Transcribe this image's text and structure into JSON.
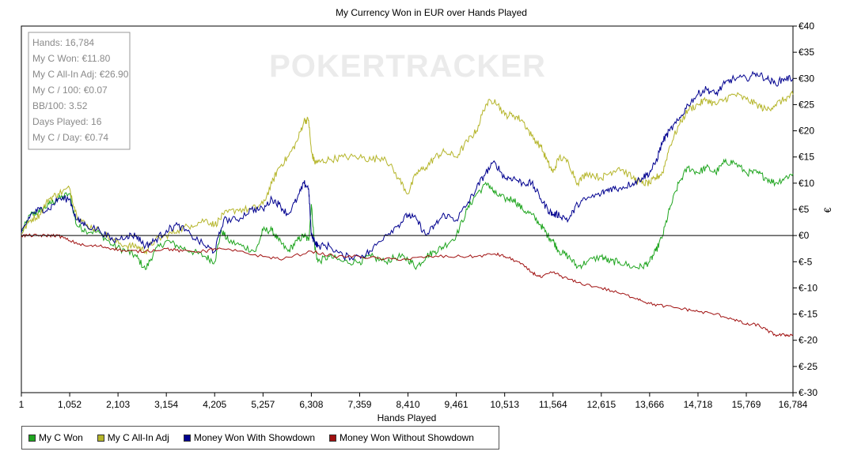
{
  "chart_data": {
    "type": "line",
    "title": "My Currency Won in EUR over Hands Played",
    "xlabel": "Hands Played",
    "ylabel": "€",
    "xlim": [
      1,
      16784
    ],
    "ylim": [
      -30,
      40
    ],
    "x_ticks": [
      1,
      1052,
      2103,
      3154,
      4205,
      5257,
      6308,
      7359,
      8410,
      9461,
      10513,
      11564,
      12615,
      13666,
      14718,
      15769,
      16784
    ],
    "x_tick_labels": [
      "1",
      "1,052",
      "2,103",
      "3,154",
      "4,205",
      "5,257",
      "6,308",
      "7,359",
      "8,410",
      "9,461",
      "10,513",
      "11,564",
      "12,615",
      "13,666",
      "14,718",
      "15,769",
      "16,784"
    ],
    "y_ticks": [
      40,
      35,
      30,
      25,
      20,
      15,
      10,
      5,
      0,
      -5,
      -10,
      -15,
      -20,
      -25,
      -30
    ],
    "y_tick_labels": [
      "€40",
      "€35",
      "€30",
      "€25",
      "€20",
      "€15",
      "€10",
      "€5",
      "€0",
      "€-5",
      "€-10",
      "€-15",
      "€-20",
      "€-25",
      "€-30"
    ],
    "y_axis_side": "right",
    "grid": false,
    "zero_line": true,
    "legend_position": "bottom",
    "watermark": "POKERTRACKER",
    "stats": [
      "Hands: 16,784",
      "My C Won: €11.80",
      "My C All-In Adj: €26.90",
      "My C / 100: €0.07",
      "BB/100: 3.52",
      "Days Played: 16",
      "My C / Day: €0.74"
    ],
    "series": [
      {
        "name": "My C Won",
        "color": "#1fa51f",
        "x": [
          1,
          200,
          400,
          600,
          800,
          1052,
          1200,
          1400,
          1700,
          2000,
          2300,
          2500,
          2700,
          2900,
          3154,
          3400,
          3700,
          4000,
          4205,
          4350,
          4500,
          4800,
          5100,
          5257,
          5450,
          5600,
          5800,
          6000,
          6150,
          6250,
          6308,
          6380,
          6450,
          6700,
          7000,
          7359,
          7600,
          7900,
          8200,
          8410,
          8600,
          8800,
          9000,
          9200,
          9461,
          9700,
          9900,
          10150,
          10300,
          10513,
          10700,
          10900,
          11100,
          11300,
          11450,
          11564,
          11700,
          11900,
          12100,
          12300,
          12615,
          12800,
          13000,
          13300,
          13500,
          13666,
          13800,
          13950,
          14100,
          14300,
          14500,
          14718,
          14900,
          15100,
          15300,
          15500,
          15769,
          16000,
          16200,
          16400,
          16600,
          16784
        ],
        "values": [
          0.5,
          4,
          4.5,
          6,
          7,
          8,
          2,
          1,
          0.5,
          -2,
          -3,
          -4,
          -6.5,
          -3,
          -1,
          -2,
          -3,
          -4,
          -5,
          1,
          -1,
          -2,
          -3,
          1,
          1,
          -1,
          -3,
          -1,
          0,
          -1,
          6,
          -2,
          -5,
          -4,
          -5,
          -5,
          -4,
          -5,
          -4,
          -4.5,
          -6,
          -4,
          -3,
          -2,
          0,
          5,
          8,
          10,
          8,
          7,
          7,
          5,
          4,
          2,
          0,
          -1,
          -3,
          -4,
          -6,
          -5,
          -4,
          -5,
          -5,
          -6,
          -6,
          -5,
          -3,
          0,
          5,
          10,
          13,
          12,
          13,
          12,
          14,
          14,
          12,
          12,
          11,
          10,
          11,
          11.8
        ]
      },
      {
        "name": "My C All-In Adj",
        "color": "#b5b52a",
        "x": [
          1,
          200,
          400,
          600,
          800,
          1052,
          1200,
          1400,
          1700,
          2000,
          2300,
          2500,
          2700,
          2900,
          3154,
          3400,
          3700,
          4000,
          4205,
          4400,
          4700,
          5000,
          5257,
          5450,
          5600,
          5800,
          6000,
          6150,
          6250,
          6308,
          6380,
          6450,
          6700,
          7000,
          7359,
          7600,
          7900,
          8200,
          8410,
          8600,
          8800,
          9000,
          9200,
          9461,
          9700,
          9900,
          10100,
          10300,
          10513,
          10700,
          10900,
          11100,
          11300,
          11450,
          11564,
          11700,
          11900,
          12100,
          12300,
          12615,
          12800,
          13000,
          13300,
          13500,
          13666,
          13800,
          13950,
          14100,
          14300,
          14500,
          14718,
          14900,
          15100,
          15300,
          15500,
          15769,
          16000,
          16200,
          16400,
          16600,
          16784
        ],
        "values": [
          0.5,
          3,
          4,
          7,
          8,
          9,
          4,
          2,
          1,
          -1,
          -2,
          -2,
          -3,
          -1,
          0,
          1,
          2,
          3,
          2,
          4,
          5,
          5,
          6,
          10,
          13,
          15,
          18,
          22,
          22,
          16,
          14,
          14,
          14.5,
          15,
          15,
          14.5,
          15,
          11,
          8,
          12,
          13,
          15,
          16,
          15,
          18,
          20,
          25,
          26,
          23,
          23,
          22,
          19,
          17,
          14,
          12,
          15,
          14,
          10,
          12,
          11,
          12,
          13,
          11,
          10,
          10,
          11,
          12,
          17,
          21,
          24,
          25,
          26,
          25,
          26,
          27,
          26,
          25,
          24,
          25,
          26,
          26.9
        ]
      },
      {
        "name": "Money Won With Showdown",
        "color": "#00008f",
        "x": [
          1,
          200,
          400,
          600,
          800,
          1052,
          1200,
          1400,
          1700,
          2000,
          2300,
          2500,
          2700,
          2900,
          3154,
          3400,
          3700,
          4000,
          4205,
          4400,
          4700,
          5000,
          5257,
          5450,
          5600,
          5800,
          6000,
          6150,
          6250,
          6308,
          6380,
          6450,
          6700,
          7000,
          7359,
          7600,
          7900,
          8200,
          8410,
          8600,
          8800,
          9000,
          9200,
          9461,
          9700,
          9900,
          10100,
          10300,
          10513,
          10700,
          10900,
          11100,
          11300,
          11450,
          11564,
          11700,
          11900,
          12100,
          12300,
          12615,
          12800,
          13000,
          13300,
          13500,
          13666,
          13800,
          13950,
          14100,
          14300,
          14500,
          14718,
          14900,
          15100,
          15300,
          15500,
          15769,
          16000,
          16200,
          16400,
          16600,
          16784
        ],
        "values": [
          0.5,
          4,
          5,
          5,
          7,
          7,
          3,
          2,
          1,
          -1,
          0,
          0,
          -2,
          -1,
          1,
          2,
          0,
          -2,
          -3,
          3,
          3,
          5,
          5,
          7,
          6,
          4,
          7,
          10,
          9,
          0,
          -1,
          -2,
          -2,
          -4,
          -4,
          -3,
          0,
          2,
          4,
          3,
          0,
          2,
          4,
          3,
          6,
          9,
          12,
          14,
          11,
          11,
          10,
          10,
          7,
          5,
          4,
          4,
          3,
          6,
          7,
          8,
          9,
          9,
          10,
          11,
          12,
          14,
          18,
          20,
          22,
          25,
          27,
          28,
          27,
          29,
          30,
          30,
          31,
          30,
          29,
          30,
          30
        ]
      },
      {
        "name": "Money Won Without Showdown",
        "color": "#a01010",
        "x": [
          1,
          200,
          400,
          600,
          800,
          1052,
          1400,
          1700,
          2000,
          2300,
          2700,
          3154,
          3500,
          4000,
          4205,
          4700,
          5257,
          5700,
          6308,
          6800,
          7359,
          7900,
          8410,
          8900,
          9461,
          9900,
          10300,
          10513,
          10800,
          11100,
          11300,
          11564,
          11800,
          12100,
          12615,
          13000,
          13400,
          13666,
          14000,
          14400,
          14718,
          15100,
          15500,
          15769,
          16000,
          16200,
          16400,
          16600,
          16784
        ],
        "values": [
          0,
          0,
          0,
          0,
          0,
          -1,
          -2,
          -2,
          -2.5,
          -3,
          -3,
          -2.5,
          -3,
          -3,
          -2.5,
          -3,
          -4,
          -4.5,
          -3,
          -4,
          -4,
          -4.5,
          -4.5,
          -4,
          -4,
          -4,
          -3.5,
          -4,
          -5,
          -7,
          -8,
          -7,
          -8,
          -9,
          -10,
          -11,
          -12,
          -13,
          -13.5,
          -14,
          -14.5,
          -15,
          -16,
          -17,
          -17,
          -18,
          -19,
          -19,
          -19
        ]
      }
    ]
  }
}
